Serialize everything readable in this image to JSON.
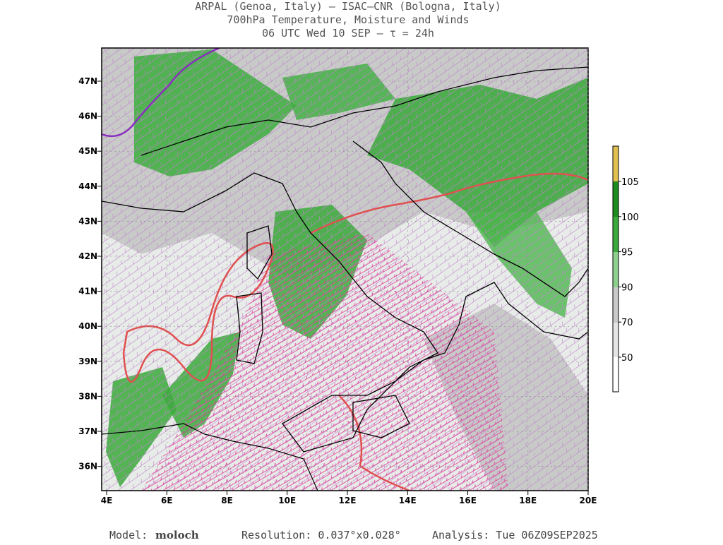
{
  "header": {
    "lines": [
      "ARPAL (Genoa, Italy)  –  ISAC–CNR (Bologna, Italy)",
      "700hPa Temperature, Moisture and Winds",
      "06 UTC Wed 10 SEP  –  τ = 24h"
    ]
  },
  "map": {
    "lat_labels": [
      "47N",
      "46N",
      "45N",
      "44N",
      "43N",
      "42N",
      "41N",
      "40N",
      "39N",
      "38N",
      "37N",
      "36N"
    ],
    "lon_labels": [
      "4E",
      "6E",
      "8E",
      "10E",
      "12E",
      "14E",
      "16E",
      "18E",
      "20E"
    ]
  },
  "colorbar": {
    "labels": [
      105,
      100,
      95,
      90,
      70,
      50
    ]
  },
  "footer": {
    "model_label": "Model:",
    "model": "moloch",
    "resolution": "Resolution: 0.037°x0.028°",
    "analysis": "Analysis: Tue 06Z09SEP2025"
  }
}
